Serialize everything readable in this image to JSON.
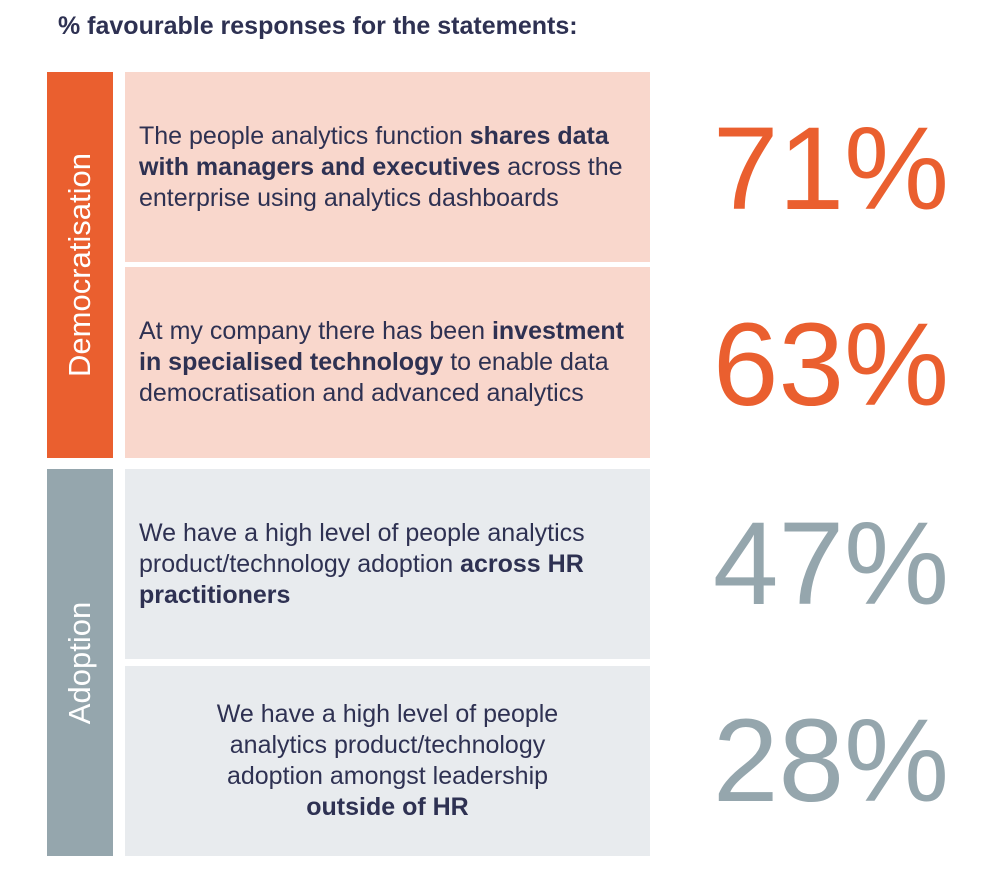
{
  "title": "% favourable responses for the statements:",
  "colors": {
    "democratisation_accent": "#ea5f2f",
    "democratisation_fill": "#f9d7cc",
    "adoption_accent": "#95a6ad",
    "adoption_fill": "#e8ebee",
    "text": "#2e3152"
  },
  "chart_data": {
    "type": "table",
    "title": "% favourable responses for the statements:",
    "groups": [
      {
        "name": "Democratisation",
        "items": [
          {
            "statement": "The people analytics function shares data with managers and executives across the enterprise using analytics dashboards",
            "value": 71
          },
          {
            "statement": "At my company there has been investment in specialised technology to enable data democratisation and advanced analytics",
            "value": 63
          }
        ]
      },
      {
        "name": "Adoption",
        "items": [
          {
            "statement": "We have a high level of people analytics product/technology adoption across HR practitioners",
            "value": 47
          },
          {
            "statement": "We have a high level of people analytics product/technology adoption amongst leadership outside of HR",
            "value": 28
          }
        ]
      }
    ]
  },
  "rows": [
    {
      "pre": "The people analytics function ",
      "em": "shares data with managers and executives",
      "post": " across the enterprise using analytics dashboards",
      "value_label": "71%"
    },
    {
      "pre": "At my company there has been ",
      "em": "investment in specialised technology",
      "post": " to enable data democratisation and advanced analytics",
      "value_label": "63%"
    },
    {
      "pre": "We have a high level of people analytics product/technology adoption ",
      "em": "across HR practitioners",
      "post": "",
      "value_label": "47%"
    },
    {
      "pre": "We have a high level of people analytics product/technology adoption amongst leadership ",
      "em": "outside of HR",
      "post": "",
      "value_label": "28%"
    }
  ]
}
